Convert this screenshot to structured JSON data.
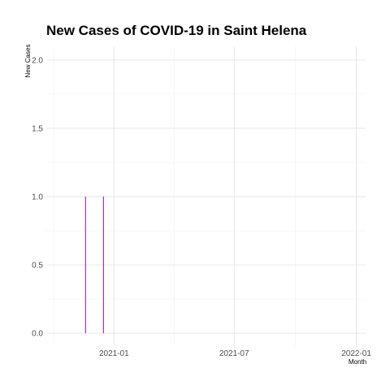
{
  "chart_data": {
    "type": "bar",
    "title": "New Cases of COVID-19 in Saint Helena",
    "xlabel": "Month",
    "ylabel": "New Cases",
    "x_type": "date",
    "xlim": [
      "2020-09-21",
      "2022-01-15"
    ],
    "ylim": [
      -0.1,
      2.1
    ],
    "x_ticks": [
      "2021-01-01",
      "2021-07-01",
      "2022-01-01"
    ],
    "x_tick_labels": [
      "2021-01",
      "2021-07",
      "2022-01"
    ],
    "y_ticks": [
      0.0,
      0.5,
      1.0,
      1.5,
      2.0
    ],
    "y_tick_labels": [
      "0.0",
      "0.5",
      "1.0",
      "1.5",
      "2.0"
    ],
    "grid": true,
    "bar_color": "#9932cc",
    "series": [
      {
        "x": [
          "2020-11-19",
          "2020-12-16"
        ],
        "values": [
          1,
          1
        ]
      }
    ]
  }
}
